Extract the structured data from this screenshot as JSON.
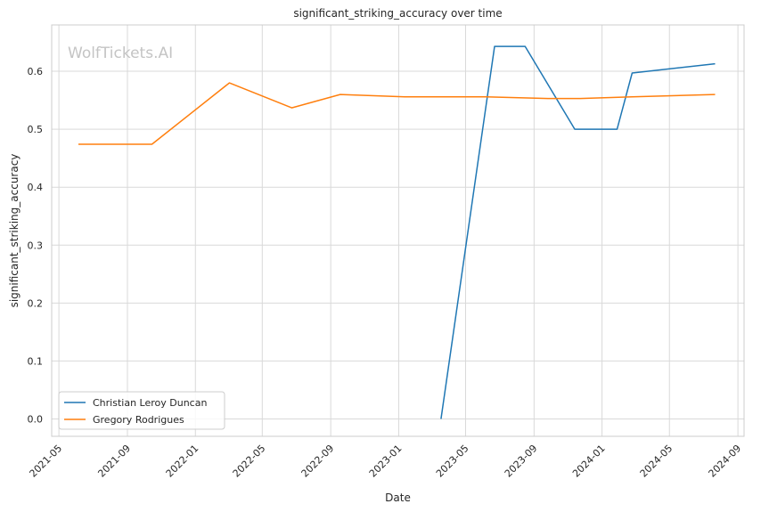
{
  "chart_data": {
    "type": "line",
    "title": "significant_striking_accuracy over time",
    "xlabel": "Date",
    "ylabel": "significant_striking_accuracy",
    "watermark": "WolfTickets.AI",
    "ylim": [
      -0.03,
      0.68
    ],
    "xlim": [
      "2021-04-18",
      "2024-09-12"
    ],
    "x_ticks": [
      "2021-05",
      "2021-09",
      "2022-01",
      "2022-05",
      "2022-09",
      "2023-01",
      "2023-05",
      "2023-09",
      "2024-01",
      "2024-05",
      "2024-09"
    ],
    "y_ticks": [
      "0.0",
      "0.1",
      "0.2",
      "0.3",
      "0.4",
      "0.5",
      "0.6"
    ],
    "grid": true,
    "legend_position": "bottom-left",
    "series": [
      {
        "name": "Christian Leroy Duncan",
        "color": "#1f77b4",
        "points": [
          {
            "x": "2023-03-18",
            "y": 0.0
          },
          {
            "x": "2023-06-22",
            "y": 0.643
          },
          {
            "x": "2023-08-16",
            "y": 0.643
          },
          {
            "x": "2023-11-13",
            "y": 0.5
          },
          {
            "x": "2024-01-28",
            "y": 0.5
          },
          {
            "x": "2024-02-24",
            "y": 0.597
          },
          {
            "x": "2024-07-22",
            "y": 0.613
          }
        ]
      },
      {
        "name": "Gregory Rodrigues",
        "color": "#ff7f0e",
        "points": [
          {
            "x": "2021-06-05",
            "y": 0.474
          },
          {
            "x": "2021-10-15",
            "y": 0.474
          },
          {
            "x": "2022-03-03",
            "y": 0.58
          },
          {
            "x": "2022-06-23",
            "y": 0.537
          },
          {
            "x": "2022-09-18",
            "y": 0.56
          },
          {
            "x": "2023-01-12",
            "y": 0.556
          },
          {
            "x": "2023-06-06",
            "y": 0.556
          },
          {
            "x": "2023-09-26",
            "y": 0.553
          },
          {
            "x": "2023-11-23",
            "y": 0.553
          },
          {
            "x": "2024-02-24",
            "y": 0.556
          },
          {
            "x": "2024-07-22",
            "y": 0.56
          }
        ]
      }
    ]
  }
}
